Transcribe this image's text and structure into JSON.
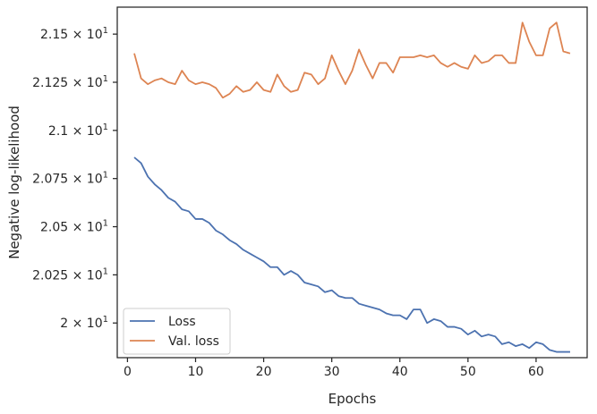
{
  "chart_data": {
    "type": "line",
    "xlabel": "Epochs",
    "ylabel": "Negative log-likelihood",
    "x_ticks": [
      0,
      10,
      20,
      30,
      40,
      50,
      60
    ],
    "x_tick_labels": [
      "0",
      "10",
      "20",
      "30",
      "40",
      "50",
      "60"
    ],
    "y_ticks": [
      20.0,
      20.25,
      20.5,
      20.75,
      21.0,
      21.25,
      21.5
    ],
    "y_tick_labels": [
      "2 × 10",
      "2.025 × 10",
      "2.05 × 10",
      "2.075 × 10",
      "2.1 × 10",
      "2.125 × 10",
      "2.15 × 10"
    ],
    "y_tick_exponent": "1",
    "xlim": [
      -1.5,
      67.5
    ],
    "ylim": [
      19.82,
      21.64
    ],
    "grid": false,
    "legend_position": "lower-left",
    "colors": {
      "loss": "#4c72b0",
      "val_loss": "#dd8452",
      "axes": "#262626"
    },
    "x": [
      1,
      2,
      3,
      4,
      5,
      6,
      7,
      8,
      9,
      10,
      11,
      12,
      13,
      14,
      15,
      16,
      17,
      18,
      19,
      20,
      21,
      22,
      23,
      24,
      25,
      26,
      27,
      28,
      29,
      30,
      31,
      32,
      33,
      34,
      35,
      36,
      37,
      38,
      39,
      40,
      41,
      42,
      43,
      44,
      45,
      46,
      47,
      48,
      49,
      50,
      51,
      52,
      53,
      54,
      55,
      56,
      57,
      58,
      59,
      60,
      61,
      62,
      63,
      64,
      65
    ],
    "series": [
      {
        "name": "Loss",
        "values": [
          20.86,
          20.83,
          20.76,
          20.72,
          20.69,
          20.65,
          20.63,
          20.59,
          20.58,
          20.54,
          20.54,
          20.52,
          20.48,
          20.46,
          20.43,
          20.41,
          20.38,
          20.36,
          20.34,
          20.32,
          20.29,
          20.29,
          20.25,
          20.27,
          20.25,
          20.21,
          20.2,
          20.19,
          20.16,
          20.17,
          20.14,
          20.13,
          20.13,
          20.1,
          20.09,
          20.08,
          20.07,
          20.05,
          20.04,
          20.04,
          20.02,
          20.07,
          20.07,
          20.0,
          20.02,
          20.01,
          19.98,
          19.98,
          19.97,
          19.94,
          19.96,
          19.93,
          19.94,
          19.93,
          19.89,
          19.9,
          19.88,
          19.89,
          19.87,
          19.9,
          19.89,
          19.86,
          19.85,
          19.85,
          19.85
        ]
      },
      {
        "name": "Val. loss",
        "values": [
          21.4,
          21.27,
          21.24,
          21.26,
          21.27,
          21.25,
          21.24,
          21.31,
          21.26,
          21.24,
          21.25,
          21.24,
          21.22,
          21.17,
          21.19,
          21.23,
          21.2,
          21.21,
          21.25,
          21.21,
          21.2,
          21.29,
          21.23,
          21.2,
          21.21,
          21.3,
          21.29,
          21.24,
          21.27,
          21.39,
          21.31,
          21.24,
          21.31,
          21.42,
          21.34,
          21.27,
          21.35,
          21.35,
          21.3,
          21.38,
          21.38,
          21.38,
          21.39,
          21.38,
          21.39,
          21.35,
          21.33,
          21.35,
          21.33,
          21.32,
          21.39,
          21.35,
          21.36,
          21.39,
          21.39,
          21.35,
          21.35,
          21.56,
          21.46,
          21.39,
          21.39,
          21.53,
          21.56,
          21.41,
          21.4
        ]
      }
    ]
  }
}
